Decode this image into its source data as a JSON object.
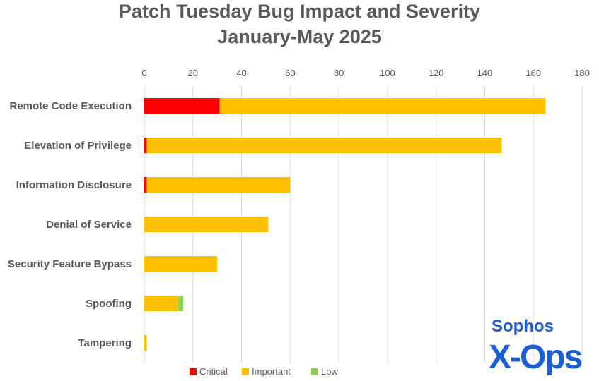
{
  "chart_data": {
    "type": "bar",
    "orientation": "horizontal",
    "stacked": true,
    "title": "Patch Tuesday Bug Impact and Severity",
    "subtitle": "January-May 2025",
    "xlabel": "",
    "ylabel": "",
    "xlim": [
      0,
      180
    ],
    "xticks": [
      0,
      20,
      40,
      60,
      80,
      100,
      120,
      140,
      160,
      180
    ],
    "grid": true,
    "legend_position": "bottom",
    "categories": [
      "Remote Code Execution",
      "Elevation of Privilege",
      "Information Disclosure",
      "Denial of Service",
      "Security Feature Bypass",
      "Spoofing",
      "Tampering"
    ],
    "series": [
      {
        "name": "Critical",
        "color": "#ff0000",
        "values": [
          31,
          1,
          1,
          0,
          0,
          0,
          0
        ]
      },
      {
        "name": "Important",
        "color": "#ffc000",
        "values": [
          134,
          146,
          59,
          51,
          30,
          14,
          1
        ]
      },
      {
        "name": "Low",
        "color": "#92d050",
        "values": [
          0,
          0,
          0,
          0,
          0,
          2,
          0
        ]
      }
    ]
  },
  "logo": {
    "line1": "Sophos",
    "line2": "X-Ops",
    "color": "#1a5fd6"
  }
}
